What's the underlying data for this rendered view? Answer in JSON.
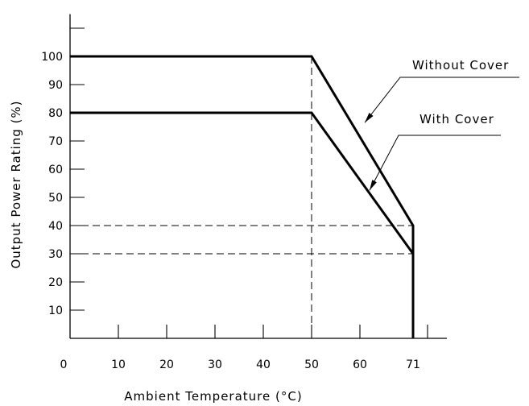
{
  "chart_data": {
    "type": "line",
    "xlabel": "Ambient Temperature (°C)",
    "ylabel": "Output Power Rating (%)",
    "xlim": [
      0,
      78
    ],
    "ylim": [
      0,
      115
    ],
    "x_ticks": [
      0,
      10,
      20,
      30,
      40,
      50,
      60,
      71
    ],
    "x_tick_labels": [
      "0",
      "10",
      "20",
      "30",
      "40",
      "50",
      "60",
      "71"
    ],
    "y_ticks": [
      10,
      20,
      30,
      40,
      50,
      60,
      70,
      80,
      90,
      100
    ],
    "y_tick_labels": [
      "10",
      "20",
      "30",
      "40",
      "50",
      "60",
      "70",
      "80",
      "90",
      "100"
    ],
    "grid": false,
    "series": [
      {
        "name": "Without Cover",
        "x": [
          0,
          50,
          71,
          71
        ],
        "y": [
          100,
          100,
          40,
          0
        ]
      },
      {
        "name": "With Cover",
        "x": [
          0,
          50,
          71,
          71
        ],
        "y": [
          80,
          80,
          30,
          0
        ]
      }
    ],
    "reference_lines": [
      {
        "orientation": "vertical",
        "x": 50,
        "y_range": [
          0,
          100
        ]
      },
      {
        "orientation": "horizontal",
        "y": 40,
        "x_range": [
          0,
          71
        ]
      },
      {
        "orientation": "horizontal",
        "y": 30,
        "x_range": [
          0,
          71
        ]
      }
    ],
    "annotations": [
      {
        "text": "Without Cover",
        "series": "Without Cover",
        "point": [
          61,
          76.5
        ]
      },
      {
        "text": "With Cover",
        "series": "With Cover",
        "point": [
          62,
          52.5
        ]
      }
    ]
  }
}
